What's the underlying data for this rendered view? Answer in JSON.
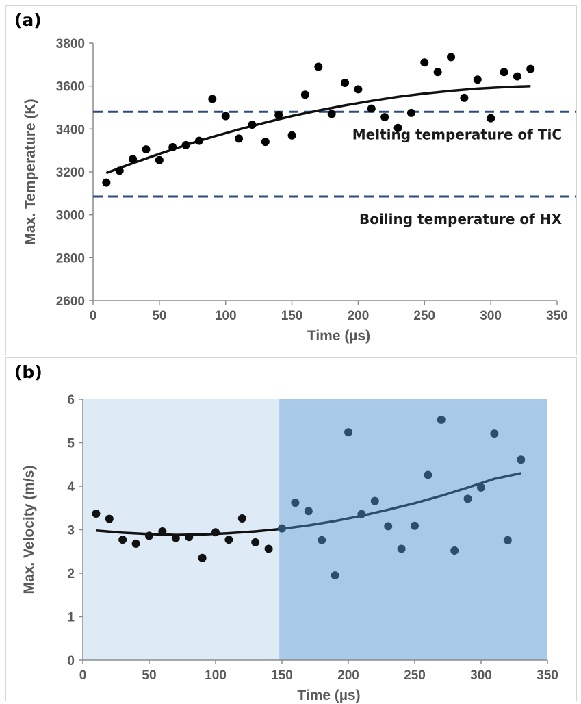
{
  "chart_data": [
    {
      "panel_label": "(a)",
      "type": "scatter",
      "xlabel": "Time (µs)",
      "ylabel": "Max. Temperature (K)",
      "xlim": [
        0,
        350
      ],
      "ylim": [
        2600,
        3800
      ],
      "xticks": [
        0,
        50,
        100,
        150,
        200,
        250,
        300,
        350
      ],
      "yticks": [
        2600,
        2800,
        3000,
        3200,
        3400,
        3600,
        3800
      ],
      "grid": false,
      "points": {
        "x": [
          10,
          20,
          30,
          40,
          50,
          60,
          70,
          80,
          90,
          100,
          110,
          120,
          130,
          140,
          150,
          160,
          170,
          180,
          190,
          200,
          210,
          220,
          230,
          240,
          250,
          260,
          270,
          280,
          290,
          300,
          310,
          320,
          330
        ],
        "y": [
          3150,
          3205,
          3260,
          3305,
          3255,
          3315,
          3325,
          3345,
          3540,
          3460,
          3355,
          3420,
          3340,
          3465,
          3370,
          3560,
          3690,
          3470,
          3615,
          3585,
          3495,
          3455,
          3405,
          3475,
          3710,
          3665,
          3735,
          3545,
          3630,
          3450,
          3665,
          3645,
          3680
        ]
      },
      "trendline": {
        "x": [
          10,
          30,
          50,
          70,
          90,
          110,
          130,
          150,
          170,
          190,
          210,
          230,
          250,
          270,
          290,
          310,
          330
        ],
        "y": [
          3195,
          3241,
          3284,
          3325,
          3363,
          3398,
          3430,
          3460,
          3486,
          3510,
          3531,
          3550,
          3565,
          3578,
          3588,
          3595,
          3600
        ]
      },
      "reference_lines": [
        {
          "y": 3480,
          "label": "Melting temperature of TiC"
        },
        {
          "y": 3085,
          "label": "Boiling temperature of HX"
        }
      ]
    },
    {
      "panel_label": "(b)",
      "type": "scatter",
      "xlabel": "Time (µs)",
      "ylabel": "Max. Velocity (m/s)",
      "xlim": [
        0,
        350
      ],
      "ylim": [
        0,
        6
      ],
      "xticks": [
        0,
        50,
        100,
        150,
        200,
        250,
        300,
        350
      ],
      "yticks": [
        0,
        1,
        2,
        3,
        4,
        5,
        6
      ],
      "grid": false,
      "shaded_regions": [
        {
          "x": [
            0,
            148
          ],
          "color": "#deebf7"
        },
        {
          "x": [
            148,
            350
          ],
          "color": "#a9c9e8"
        }
      ],
      "points": {
        "x": [
          10,
          20,
          30,
          40,
          50,
          60,
          70,
          80,
          90,
          100,
          110,
          120,
          130,
          140,
          150,
          160,
          170,
          180,
          190,
          200,
          210,
          220,
          230,
          240,
          250,
          260,
          270,
          280,
          290,
          300,
          310,
          320,
          330
        ],
        "y": [
          3.37,
          3.25,
          2.77,
          2.68,
          2.86,
          2.96,
          2.81,
          2.83,
          2.35,
          2.94,
          2.77,
          3.26,
          2.71,
          2.56,
          3.03,
          3.62,
          3.43,
          2.76,
          1.95,
          5.24,
          3.36,
          3.66,
          3.08,
          2.56,
          3.09,
          4.26,
          5.53,
          2.52,
          3.71,
          3.97,
          5.21,
          2.76,
          4.61
        ]
      },
      "trendline": {
        "x": [
          10,
          30,
          50,
          70,
          90,
          110,
          130,
          150,
          170,
          190,
          210,
          230,
          250,
          270,
          290,
          310,
          330
        ],
        "y": [
          2.98,
          2.93,
          2.9,
          2.88,
          2.89,
          2.92,
          2.96,
          3.02,
          3.1,
          3.2,
          3.32,
          3.46,
          3.61,
          3.78,
          3.97,
          4.17,
          4.3
        ]
      },
      "colors": {
        "left_points": "#111111",
        "right_points": "#2e4e6e",
        "left_line": "#111111",
        "right_line": "#2e4e6e"
      }
    }
  ]
}
